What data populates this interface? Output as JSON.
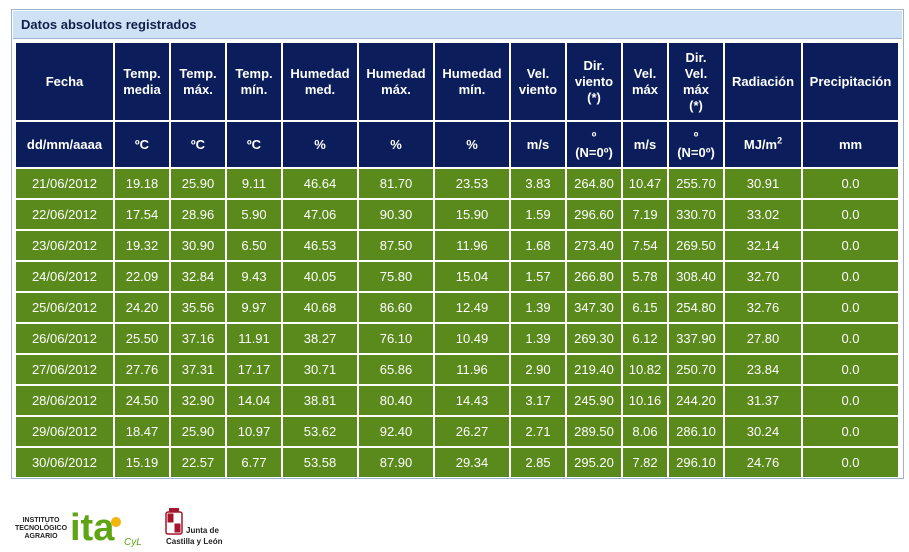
{
  "caption": "Datos absolutos registrados",
  "columns": [
    {
      "label": [
        "Fecha"
      ],
      "unit": [
        "dd/mm/aaaa"
      ],
      "width": 97
    },
    {
      "label": [
        "Temp.",
        "media"
      ],
      "unit": [
        "ºC"
      ],
      "width": 54
    },
    {
      "label": [
        "Temp.",
        "máx."
      ],
      "unit": [
        "ºC"
      ],
      "width": 54
    },
    {
      "label": [
        "Temp.",
        "mín."
      ],
      "unit": [
        "ºC"
      ],
      "width": 54
    },
    {
      "label": [
        "Humedad",
        "med."
      ],
      "unit": [
        "%"
      ],
      "width": 74
    },
    {
      "label": [
        "Humedad",
        "máx."
      ],
      "unit": [
        "%"
      ],
      "width": 74
    },
    {
      "label": [
        "Humedad",
        "mín."
      ],
      "unit": [
        "%"
      ],
      "width": 74
    },
    {
      "label": [
        "Vel.",
        "viento"
      ],
      "unit": [
        "m/s"
      ],
      "width": 54
    },
    {
      "label": [
        "Dir.",
        "viento",
        "(*)"
      ],
      "unit": [
        "º",
        "(N=0º)"
      ],
      "width": 54
    },
    {
      "label": [
        "Vel.",
        "máx"
      ],
      "unit": [
        "m/s"
      ],
      "width": 44
    },
    {
      "label": [
        "Dir.",
        "Vel.",
        "máx",
        "(*)"
      ],
      "unit": [
        "º",
        "(N=0º)"
      ],
      "width": 54
    },
    {
      "label": [
        "Radiación"
      ],
      "unit": [
        "MJ/m",
        "2"
      ],
      "width": 76
    },
    {
      "label": [
        "Precipitación"
      ],
      "unit": [
        "mm"
      ],
      "width": 95
    }
  ],
  "rows": [
    [
      "21/06/2012",
      "19.18",
      "25.90",
      "9.11",
      "46.64",
      "81.70",
      "23.53",
      "3.83",
      "264.80",
      "10.47",
      "255.70",
      "30.91",
      "0.0"
    ],
    [
      "22/06/2012",
      "17.54",
      "28.96",
      "5.90",
      "47.06",
      "90.30",
      "15.90",
      "1.59",
      "296.60",
      "7.19",
      "330.70",
      "33.02",
      "0.0"
    ],
    [
      "23/06/2012",
      "19.32",
      "30.90",
      "6.50",
      "46.53",
      "87.50",
      "11.96",
      "1.68",
      "273.40",
      "7.54",
      "269.50",
      "32.14",
      "0.0"
    ],
    [
      "24/06/2012",
      "22.09",
      "32.84",
      "9.43",
      "40.05",
      "75.80",
      "15.04",
      "1.57",
      "266.80",
      "5.78",
      "308.40",
      "32.70",
      "0.0"
    ],
    [
      "25/06/2012",
      "24.20",
      "35.56",
      "9.97",
      "40.68",
      "86.60",
      "12.49",
      "1.39",
      "347.30",
      "6.15",
      "254.80",
      "32.76",
      "0.0"
    ],
    [
      "26/06/2012",
      "25.50",
      "37.16",
      "11.91",
      "38.27",
      "76.10",
      "10.49",
      "1.39",
      "269.30",
      "6.12",
      "337.90",
      "27.80",
      "0.0"
    ],
    [
      "27/06/2012",
      "27.76",
      "37.31",
      "17.17",
      "30.71",
      "65.86",
      "11.96",
      "2.90",
      "219.40",
      "10.82",
      "250.70",
      "23.84",
      "0.0"
    ],
    [
      "28/06/2012",
      "24.50",
      "32.90",
      "14.04",
      "38.81",
      "80.40",
      "14.43",
      "3.17",
      "245.90",
      "10.16",
      "244.20",
      "31.37",
      "0.0"
    ],
    [
      "29/06/2012",
      "18.47",
      "25.90",
      "10.97",
      "53.62",
      "92.40",
      "26.27",
      "2.71",
      "289.50",
      "8.06",
      "286.10",
      "30.24",
      "0.0"
    ],
    [
      "30/06/2012",
      "15.19",
      "22.57",
      "6.77",
      "53.58",
      "87.90",
      "29.34",
      "2.85",
      "295.20",
      "7.82",
      "296.10",
      "24.76",
      "0.0"
    ]
  ],
  "logos": {
    "ita": {
      "line1": "INSTITUTO",
      "line2": "TECNOLÓGICO",
      "line3": "AGRARIO",
      "mark": "ita",
      "suffix": "CyL",
      "colors": {
        "green": "#5fa414",
        "yellow": "#f2b705"
      }
    },
    "jcyl": {
      "line1": "Junta de",
      "line2": "Castilla y León",
      "icon": "coat-of-arms-icon",
      "colors": {
        "red": "#a3162c"
      }
    }
  },
  "colors": {
    "caption_bg": "#cfe2f5",
    "header_bg": "#0b1e5b",
    "cell_bg": "#5a8a1c",
    "border": "#9db4d1"
  }
}
